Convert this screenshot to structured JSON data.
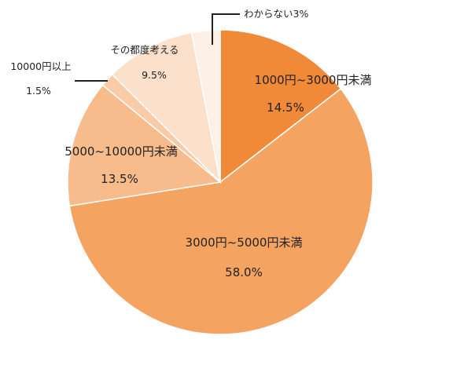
{
  "chart_data": {
    "type": "pie",
    "start_angle_deg": 0,
    "direction": "clockwise",
    "slices": [
      {
        "label": "1000円~3000円未満",
        "value": 14.5,
        "value_label": "14.5%",
        "color": "#f08a38"
      },
      {
        "label": "3000円~5000円未満",
        "value": 58.0,
        "value_label": "58.0%",
        "color": "#f4a460"
      },
      {
        "label": "5000~10000円未満",
        "value": 13.5,
        "value_label": "13.5%",
        "color": "#f7bb8c"
      },
      {
        "label": "10000円以上",
        "value": 1.5,
        "value_label": "1.5%",
        "color": "#f9cba6"
      },
      {
        "label": "その都度考える",
        "value": 9.5,
        "value_label": "9.5%",
        "color": "#fbe0cc"
      },
      {
        "label": "わからない",
        "value": 3.0,
        "value_label": "3%",
        "color": "#fdf1e7"
      }
    ]
  }
}
